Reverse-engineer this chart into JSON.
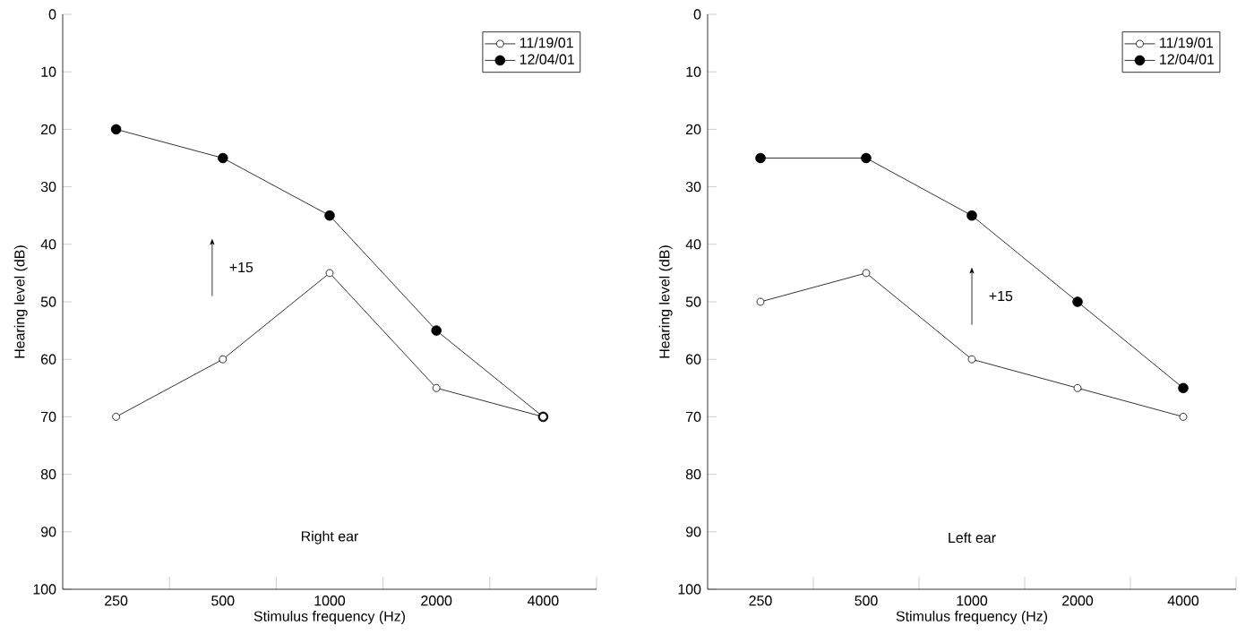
{
  "chart_data": [
    {
      "type": "line",
      "xlabel": "Stimulus frequency (Hz)",
      "ylabel": "Hearing level (dB)",
      "categories": [
        "250",
        "500",
        "1000",
        "2000",
        "4000"
      ],
      "series": [
        {
          "name": "11/19/01",
          "color": "#000000",
          "values": [
            70,
            60,
            45,
            65,
            70
          ]
        },
        {
          "name": "12/04/01",
          "color": "#000000",
          "values": [
            20,
            25,
            35,
            55,
            70
          ]
        }
      ],
      "ylim": [
        100,
        0
      ],
      "yticks": [
        0,
        10,
        20,
        30,
        40,
        50,
        60,
        70,
        80,
        90,
        100
      ],
      "marker": "circle",
      "line_style": "solid",
      "legend": "top right",
      "grid": false,
      "annotations": [
        "+15",
        "Right ear"
      ]
    },
    {
      "type": "line",
      "xlabel": "Stimulus frequency (Hz)",
      "ylabel": "Hearing level (dB)",
      "categories": [
        "250",
        "500",
        "1000",
        "2000",
        "4000"
      ],
      "series": [
        {
          "name": "11/19/01",
          "color": "#000000",
          "values": [
            50,
            45,
            60,
            65,
            70
          ]
        },
        {
          "name": "12/04/01",
          "color": "#000000",
          "values": [
            25,
            25,
            35,
            50,
            65
          ]
        }
      ],
      "ylim": [
        100,
        0
      ],
      "yticks": [
        0,
        10,
        20,
        30,
        40,
        50,
        60,
        70,
        80,
        90,
        100
      ],
      "marker": "circle",
      "line_style": "solid",
      "legend": "top right",
      "grid": false,
      "annotations": [
        "+15",
        "Left ear"
      ]
    }
  ]
}
